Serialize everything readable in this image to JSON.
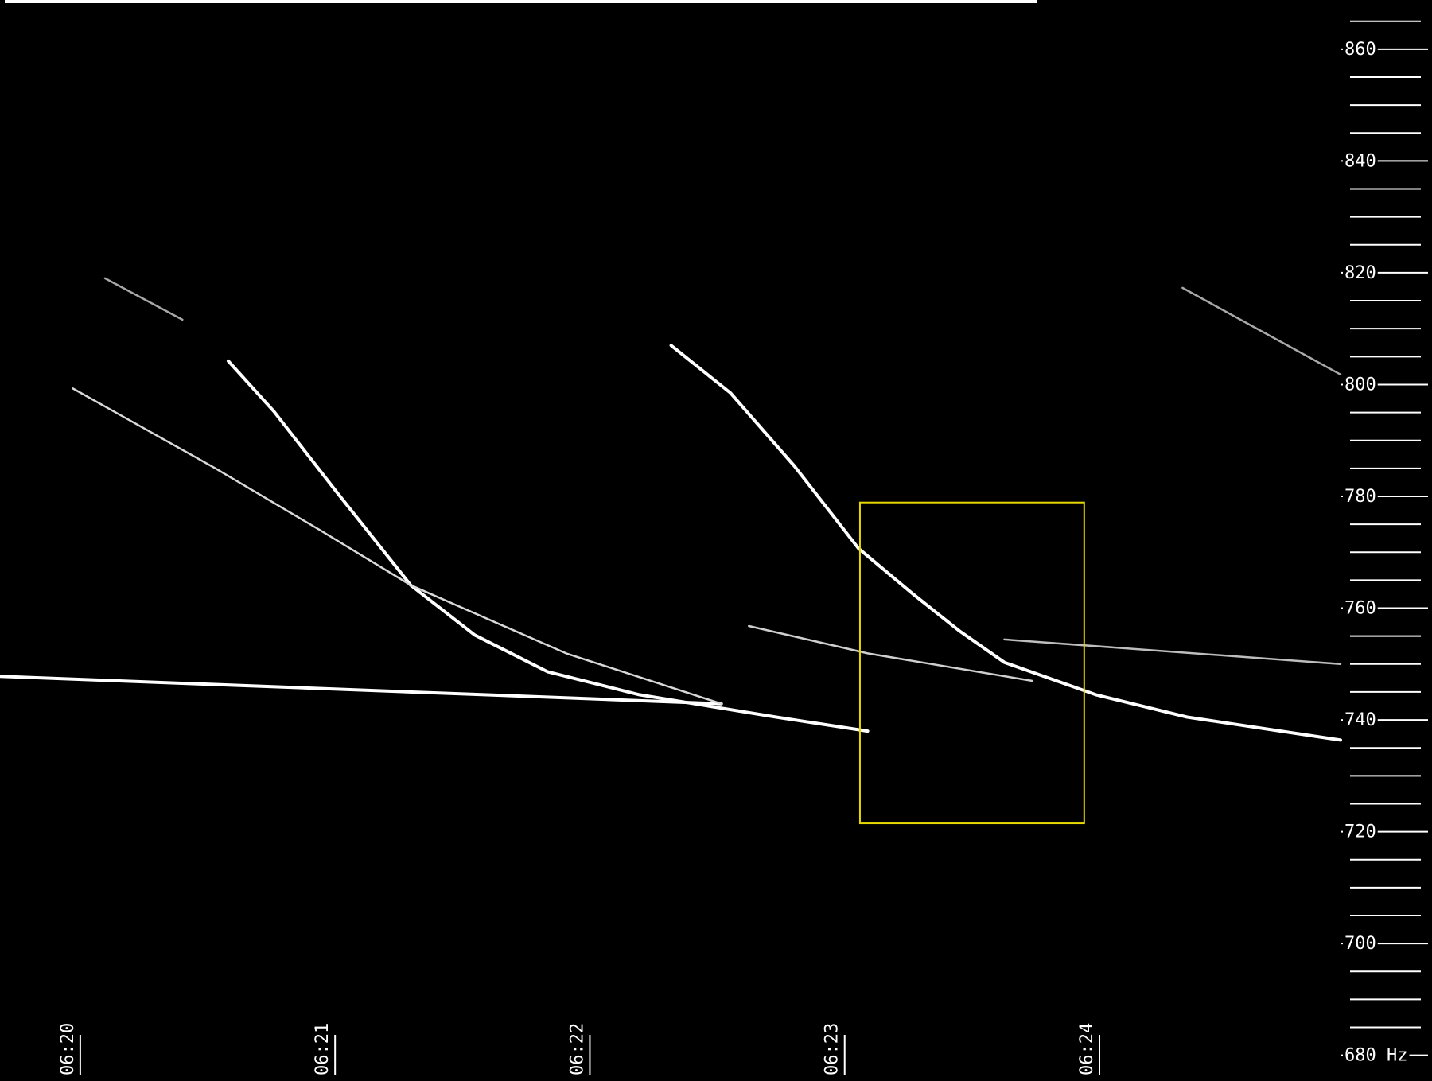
{
  "chart_data": {
    "type": "spectrogram",
    "xlim": [
      19.685,
      24.946
    ],
    "ylim": [
      675.4,
      868.8
    ],
    "xticks": [
      {
        "value": 20,
        "label": "06:20"
      },
      {
        "value": 21,
        "label": "06:21"
      },
      {
        "value": 22,
        "label": "06:22"
      },
      {
        "value": 23,
        "label": "06:23"
      },
      {
        "value": 24,
        "label": "06:24"
      }
    ],
    "yticks": [
      860,
      840,
      820,
      800,
      780,
      760,
      740,
      720,
      700,
      {
        "value": 680,
        "label": "680 Hz"
      }
    ],
    "yminorticks": [
      865,
      855,
      850,
      845,
      835,
      830,
      825,
      815,
      810,
      805,
      795,
      790,
      785,
      775,
      770,
      765,
      755,
      750,
      745,
      735,
      730,
      725,
      715,
      710,
      705,
      695,
      690,
      685
    ],
    "series": [
      {
        "color": "#ffffff",
        "x": [
          19.685,
          22.516
        ],
        "values": [
          747.8,
          742.9
        ]
      },
      {
        "color": "#ffffff",
        "x": [
          20.581,
          20.76,
          21.011,
          21.297,
          21.548,
          21.835,
          22.194,
          22.731,
          23.09
        ],
        "values": [
          804.2,
          795.2,
          780.5,
          764.1,
          755.2,
          748.6,
          744.5,
          740.5,
          738.0
        ]
      },
      {
        "color": "#ffffff",
        "x": [
          22.319,
          22.552,
          22.803,
          23.054,
          23.269,
          23.448,
          23.627,
          23.986,
          24.344,
          24.946
        ],
        "values": [
          807.0,
          798.5,
          785.4,
          770.7,
          762.5,
          756.0,
          750.3,
          744.5,
          740.5,
          736.4
        ]
      },
      {
        "color": "#d8d8d8",
        "x": [
          19.971,
          20.527,
          20.939,
          21.297,
          21.907,
          22.516
        ],
        "values": [
          799.3,
          785.1,
          774.0,
          764.1,
          751.9,
          742.9
        ]
      },
      {
        "color": "#cfcfcf",
        "x": [
          22.624,
          23.09,
          23.735
        ],
        "values": [
          756.8,
          751.9,
          747.0
        ]
      },
      {
        "color": "#bdbdbd",
        "x": [
          23.627,
          24.946
        ],
        "values": [
          754.4,
          750.0
        ]
      },
      {
        "color": "#a8a8a8",
        "x": [
          20.097,
          20.401
        ],
        "values": [
          819.0,
          811.6
        ]
      },
      {
        "color": "#a8a8a8",
        "x": [
          24.326,
          24.946
        ],
        "values": [
          817.3,
          801.8
        ]
      }
    ],
    "highlight": {
      "color": "#e6d800",
      "xlim": [
        23.06,
        23.94
      ],
      "ylim": [
        721.5,
        778.9
      ]
    }
  }
}
